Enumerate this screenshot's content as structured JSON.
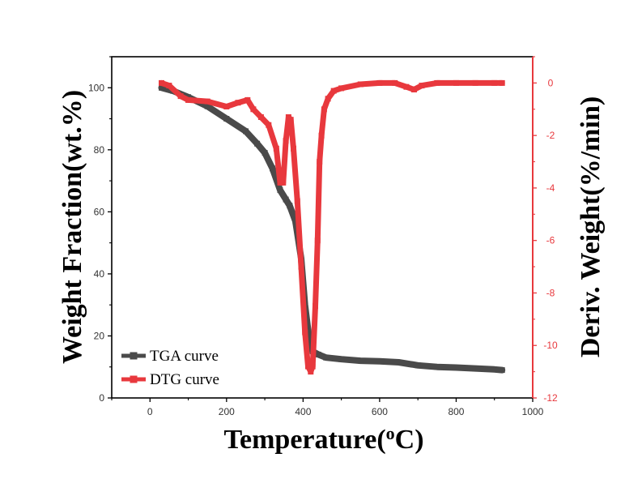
{
  "chart_data": {
    "type": "line",
    "title": "",
    "xlabel": "Temperature",
    "xlabel_unit_prefix": "(",
    "xlabel_unit_superscript": "o",
    "xlabel_unit_suffix": "C)",
    "ylabel_left": "Weight Fraction(wt.%)",
    "ylabel_right": "Deriv. Weight(%/min)",
    "xlim": [
      -100,
      1000
    ],
    "ylim_left": [
      0,
      110
    ],
    "ylim_right": [
      -12,
      1
    ],
    "x_ticks": [
      0,
      200,
      400,
      600,
      800,
      1000
    ],
    "y_left_ticks": [
      0,
      20,
      40,
      60,
      80,
      100
    ],
    "y_right_ticks": [
      0,
      -2,
      -4,
      -6,
      -8,
      -10,
      -12
    ],
    "grid": false,
    "legend_position": "bottom-left",
    "series": [
      {
        "name": "TGA curve",
        "axis": "left",
        "color": "#4a4a4a",
        "points": [
          [
            30,
            100
          ],
          [
            60,
            99
          ],
          [
            100,
            97
          ],
          [
            150,
            94
          ],
          [
            200,
            90
          ],
          [
            250,
            86
          ],
          [
            280,
            82
          ],
          [
            300,
            79
          ],
          [
            320,
            74
          ],
          [
            340,
            67
          ],
          [
            355,
            64
          ],
          [
            365,
            62
          ],
          [
            380,
            57
          ],
          [
            395,
            45
          ],
          [
            405,
            30
          ],
          [
            415,
            20
          ],
          [
            425,
            15
          ],
          [
            440,
            14
          ],
          [
            460,
            13
          ],
          [
            500,
            12.5
          ],
          [
            550,
            12
          ],
          [
            600,
            11.8
          ],
          [
            650,
            11.5
          ],
          [
            700,
            10.5
          ],
          [
            750,
            10
          ],
          [
            800,
            9.8
          ],
          [
            850,
            9.5
          ],
          [
            900,
            9.2
          ],
          [
            920,
            9
          ]
        ]
      },
      {
        "name": "DTG curve",
        "axis": "right",
        "color": "#e8383d",
        "points": [
          [
            30,
            0
          ],
          [
            50,
            -0.1
          ],
          [
            80,
            -0.5
          ],
          [
            100,
            -0.65
          ],
          [
            150,
            -0.7
          ],
          [
            200,
            -0.9
          ],
          [
            230,
            -0.75
          ],
          [
            255,
            -0.65
          ],
          [
            270,
            -1.0
          ],
          [
            290,
            -1.3
          ],
          [
            310,
            -1.6
          ],
          [
            330,
            -2.5
          ],
          [
            340,
            -3.8
          ],
          [
            348,
            -3.8
          ],
          [
            355,
            -2.2
          ],
          [
            362,
            -1.3
          ],
          [
            368,
            -1.4
          ],
          [
            375,
            -2.5
          ],
          [
            385,
            -4.5
          ],
          [
            395,
            -7.0
          ],
          [
            405,
            -9.5
          ],
          [
            413,
            -10.8
          ],
          [
            420,
            -11.0
          ],
          [
            425,
            -10.8
          ],
          [
            432,
            -8.5
          ],
          [
            438,
            -6.0
          ],
          [
            443,
            -3.0
          ],
          [
            448,
            -2.0
          ],
          [
            455,
            -1.0
          ],
          [
            465,
            -0.6
          ],
          [
            480,
            -0.3
          ],
          [
            500,
            -0.2
          ],
          [
            550,
            -0.05
          ],
          [
            600,
            0
          ],
          [
            640,
            0
          ],
          [
            670,
            -0.15
          ],
          [
            690,
            -0.25
          ],
          [
            710,
            -0.1
          ],
          [
            750,
            0
          ],
          [
            800,
            0
          ],
          [
            850,
            0
          ],
          [
            900,
            0
          ],
          [
            920,
            0
          ]
        ]
      }
    ]
  }
}
